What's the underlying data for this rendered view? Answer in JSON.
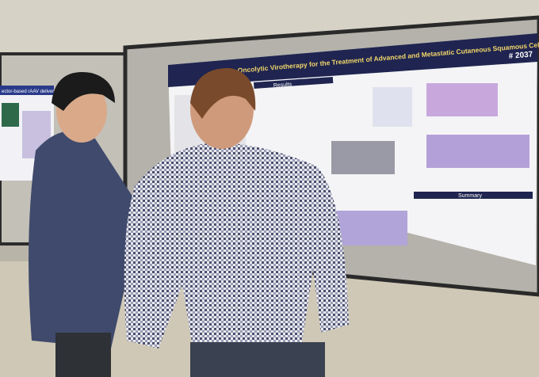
{
  "scene": {
    "poster": {
      "title": "Oncolytic Virotherapy for the Treatment of Advanced and Metastatic Cutaneous Squamous Cell Carcinoma",
      "number": "# 2037",
      "sections": [
        "Results",
        "Summary"
      ]
    },
    "left_poster": {
      "title": "ector-based rAAV delivery"
    }
  }
}
